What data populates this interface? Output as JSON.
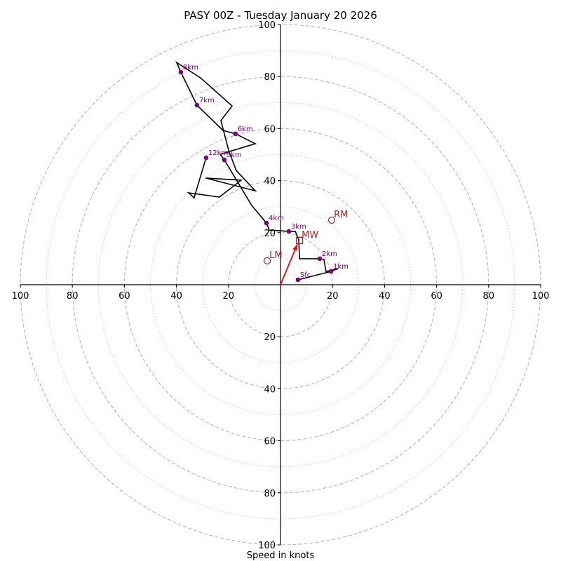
{
  "chart_data": {
    "type": "hodograph",
    "title": "PASY 00Z - Tuesday January 20 2026",
    "xlabel": "Speed in knots",
    "ylabel": "",
    "units": "knots",
    "range": [
      -100,
      100
    ],
    "ticks": [
      100,
      80,
      60,
      40,
      20,
      20,
      40,
      60,
      80,
      100
    ],
    "tick_values": [
      -100,
      -80,
      -60,
      -40,
      -20,
      20,
      40,
      60,
      80,
      100
    ],
    "rings_dashed": [
      20,
      40,
      60,
      80,
      100
    ],
    "rings_dotted": [
      10,
      30,
      50,
      70,
      90
    ],
    "colors": {
      "trace": "#000000",
      "levels": "#800080",
      "motion": "#b22222",
      "shear_vector": "#ff0000",
      "rings": "#bbbbbb"
    },
    "trace": [
      [
        6.7,
        1.9
      ],
      [
        19.4,
        5.1
      ],
      [
        22.1,
        6.2
      ],
      [
        17.5,
        5.1
      ],
      [
        16.7,
        9.7
      ],
      [
        15.1,
        10.0
      ],
      [
        7.3,
        10.0
      ],
      [
        7.0,
        17.3
      ],
      [
        5.7,
        20.5
      ],
      [
        3.2,
        20.5
      ],
      [
        -4.3,
        21.0
      ],
      [
        -5.4,
        23.7
      ],
      [
        -11.1,
        30.5
      ],
      [
        -15.1,
        37.2
      ],
      [
        -21.6,
        48.0
      ],
      [
        -23.2,
        50.1
      ],
      [
        -9.7,
        54.2
      ],
      [
        -17.3,
        58.0
      ],
      [
        -22.1,
        59.3
      ],
      [
        -32.1,
        69.0
      ],
      [
        -38.3,
        81.7
      ],
      [
        -39.9,
        85.4
      ],
      [
        -30.7,
        79.5
      ],
      [
        -18.6,
        68.7
      ],
      [
        -22.9,
        63.1
      ],
      [
        -19.9,
        51.5
      ],
      [
        -17.0,
        43.9
      ],
      [
        -9.7,
        36.1
      ],
      [
        -28.8,
        41.0
      ],
      [
        -15.1,
        40.2
      ],
      [
        -23.5,
        33.7
      ],
      [
        -35.3,
        35.3
      ],
      [
        -33.2,
        33.4
      ],
      [
        -28.6,
        48.8
      ]
    ],
    "levels": [
      {
        "label": "Sfc",
        "u": 6.7,
        "v": 1.9
      },
      {
        "label": "1km",
        "u": 19.4,
        "v": 5.1
      },
      {
        "label": "2km",
        "u": 15.1,
        "v": 10.0
      },
      {
        "label": "3km",
        "u": 3.2,
        "v": 20.5
      },
      {
        "label": "4km",
        "u": -5.4,
        "v": 23.7
      },
      {
        "label": "5km",
        "u": -21.6,
        "v": 48.0
      },
      {
        "label": "6km",
        "u": -17.3,
        "v": 58.0
      },
      {
        "label": "7km",
        "u": -32.1,
        "v": 69.0
      },
      {
        "label": "8km",
        "u": -38.3,
        "v": 81.7
      },
      {
        "label": "12km",
        "u": -28.6,
        "v": 48.8
      }
    ],
    "storm_motion": [
      {
        "label": "RM",
        "marker": "circle",
        "u": 19.7,
        "v": 24.8
      },
      {
        "label": "LM",
        "marker": "circle",
        "u": -5.1,
        "v": 9.2
      },
      {
        "label": "MW",
        "marker": "square",
        "u": 7.3,
        "v": 17.0
      }
    ],
    "shear_vector": {
      "from": [
        0,
        0
      ],
      "to": [
        6.5,
        15.6
      ]
    }
  }
}
